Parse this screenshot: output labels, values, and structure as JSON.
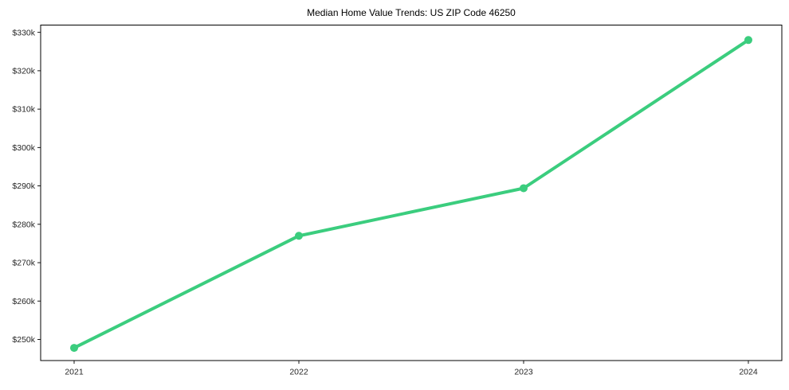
{
  "chart_data": {
    "type": "line",
    "title": "Median Home Value Trends: US ZIP Code 46250",
    "x": [
      "2021",
      "2022",
      "2023",
      "2024"
    ],
    "series": [
      {
        "name": "Median Home Value",
        "values": [
          247800,
          277000,
          289400,
          328000
        ]
      }
    ],
    "xlabel": "",
    "ylabel": "",
    "y_ticks": [
      250000,
      260000,
      270000,
      280000,
      290000,
      300000,
      310000,
      320000,
      330000
    ],
    "y_tick_labels": [
      "$250k",
      "$260k",
      "$270k",
      "$280k",
      "$290k",
      "$300k",
      "$310k",
      "$320k",
      "$330k"
    ],
    "ylim": [
      244500,
      331900
    ],
    "grid": false,
    "legend_position": "none",
    "line_color": "#3bcd7e",
    "marker_color": "#3bcd7e",
    "frame_color": "#000000",
    "tick_text_color": "#262626",
    "title_color": "#000000",
    "background_color": "#ffffff"
  }
}
